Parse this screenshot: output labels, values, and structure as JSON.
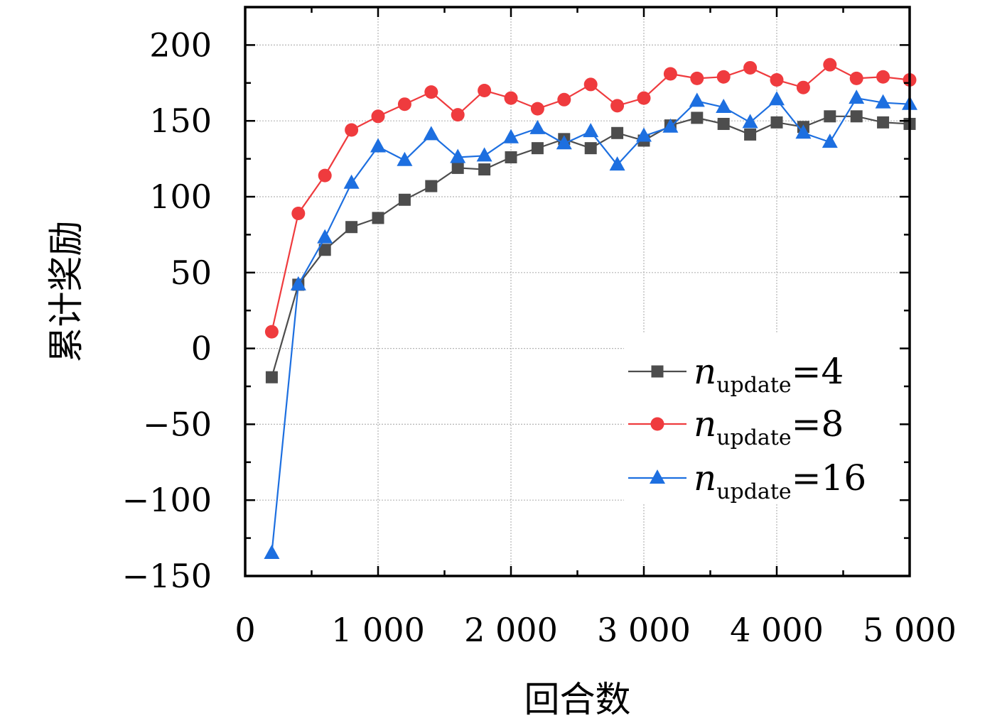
{
  "chart_data": {
    "type": "line",
    "xlabel": "回合数",
    "ylabel": "累计奖励",
    "xlim": [
      0,
      5000
    ],
    "ylim": [
      -150,
      225
    ],
    "xticks": [
      0,
      1000,
      2000,
      3000,
      4000,
      5000
    ],
    "xtick_labels": [
      "0",
      "1 000",
      "2 000",
      "3 000",
      "4 000",
      "5 000"
    ],
    "yticks": [
      -150,
      -100,
      -50,
      0,
      50,
      100,
      150,
      200
    ],
    "ytick_labels": [
      "−150",
      "−100",
      "−50",
      "0",
      "50",
      "100",
      "150",
      "200"
    ],
    "grid": true,
    "legend_position": "lower-right",
    "x": [
      200,
      400,
      600,
      800,
      1000,
      1200,
      1400,
      1600,
      1800,
      2000,
      2200,
      2400,
      2600,
      2800,
      3000,
      3200,
      3400,
      3600,
      3800,
      4000,
      4200,
      4400,
      4600,
      4800,
      5000
    ],
    "series": [
      {
        "name": "n_update=4",
        "legend_var": "n",
        "legend_sub": "update",
        "legend_val": "=4",
        "color": "#4d4d4d",
        "marker": "square",
        "values": [
          -19,
          42,
          65,
          80,
          86,
          98,
          107,
          119,
          118,
          126,
          132,
          138,
          132,
          142,
          137,
          147,
          152,
          148,
          141,
          149,
          146,
          153,
          153,
          149,
          148
        ]
      },
      {
        "name": "n_update=8",
        "legend_var": "n",
        "legend_sub": "update",
        "legend_val": "=8",
        "color": "#ef3b3e",
        "marker": "circle",
        "values": [
          11,
          89,
          114,
          144,
          153,
          161,
          169,
          154,
          170,
          165,
          158,
          164,
          174,
          160,
          165,
          181,
          178,
          179,
          185,
          177,
          172,
          187,
          178,
          179,
          177
        ]
      },
      {
        "name": "n_update=16",
        "legend_var": "n",
        "legend_sub": "update",
        "legend_val": "=16",
        "color": "#1d6fe0",
        "marker": "triangle",
        "values": [
          -135,
          42,
          73,
          109,
          133,
          124,
          141,
          126,
          127,
          139,
          145,
          135,
          143,
          121,
          140,
          146,
          163,
          159,
          149,
          164,
          142,
          136,
          165,
          162,
          161
        ]
      }
    ]
  }
}
